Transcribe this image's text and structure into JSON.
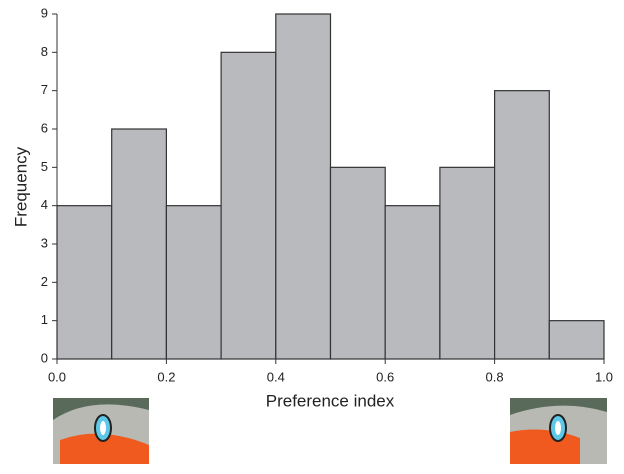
{
  "chart_data": {
    "type": "histogram",
    "x_label": "Preference index",
    "y_label": "Frequency",
    "bins": [
      0,
      0.1,
      0.2,
      0.3,
      0.4,
      0.5,
      0.6,
      0.7,
      0.8,
      0.9,
      1
    ],
    "values": [
      4,
      6,
      4,
      8,
      9,
      5,
      4,
      5,
      7,
      1
    ],
    "color": "#b9babe",
    "edgecolor": "#333333",
    "xlim": [
      0,
      1
    ],
    "xticks": [
      {
        "value": 0,
        "label": "0.0"
      },
      0.2,
      0.4,
      0.6,
      0.8,
      {
        "value": 1,
        "label": "1.0"
      }
    ],
    "ylim": [
      0,
      9
    ],
    "yticks": [
      0,
      1,
      2,
      3,
      4,
      5,
      6,
      7,
      8,
      9
    ]
  }
}
